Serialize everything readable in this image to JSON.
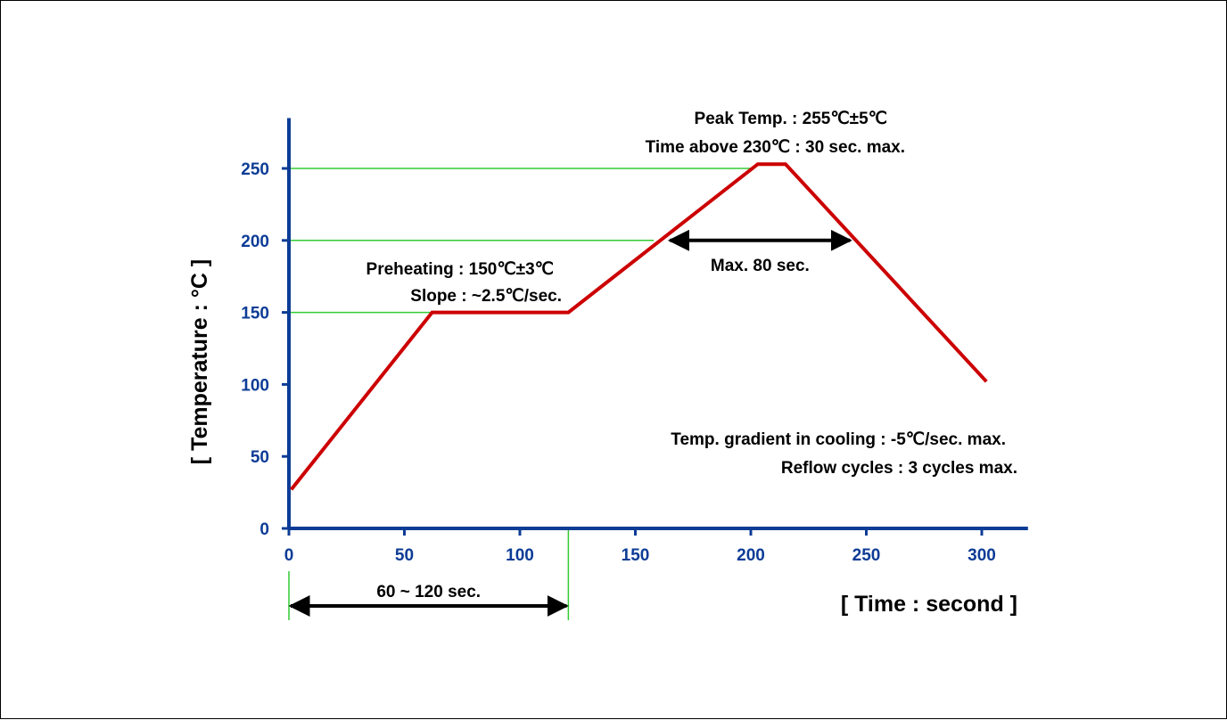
{
  "chart_data": {
    "type": "line",
    "x_axis_label": "[ Time : second ]",
    "y_axis_label": "[ Temperature : °C ]",
    "x_ticks": [
      0,
      50,
      100,
      150,
      200,
      250,
      300
    ],
    "y_ticks": [
      0,
      50,
      100,
      150,
      200,
      250
    ],
    "xlim": [
      0,
      320
    ],
    "ylim": [
      0,
      285
    ],
    "series": [
      {
        "points": [
          {
            "x": 1,
            "y": 27
          },
          {
            "x": 62,
            "y": 150
          },
          {
            "x": 121,
            "y": 150
          },
          {
            "x": 203,
            "y": 253
          },
          {
            "x": 215,
            "y": 253
          },
          {
            "x": 302,
            "y": 102
          }
        ]
      }
    ],
    "reference_lines": [
      {
        "y": 150,
        "x_from": 0,
        "x_to": 121
      },
      {
        "y": 200,
        "x_from": 0,
        "x_to": 158
      },
      {
        "y": 250,
        "x_from": 0,
        "x_to": 200
      },
      {
        "x": 121,
        "y_from": 0,
        "y_to": 150
      }
    ],
    "range_arrows": [
      {
        "label": "60 ~ 120 sec.",
        "x_from": 0,
        "x_to": 121
      },
      {
        "label": "Max. 80 sec.",
        "x_from": 165,
        "x_to": 243
      }
    ],
    "annotations": {
      "peak_temp": "Peak Temp. : 255℃±5℃",
      "time_above": "Time above 230℃ : 30 sec. max.",
      "preheating": "Preheating : 150℃±3℃",
      "slope": "Slope : ~2.5℃/sec.",
      "cooling": "Temp. gradient in cooling : -5℃/sec. max.",
      "reflow_cycles": "Reflow cycles : 3 cycles max."
    },
    "grid": false,
    "legend": "none"
  },
  "colors": {
    "axis": "#0c3c96",
    "tick_text": "#0c3c96",
    "axis_label_text": "#1f4f4f",
    "profile_line": "#cc0000",
    "reference_line": "#33cc33",
    "arrow": "#000000"
  }
}
